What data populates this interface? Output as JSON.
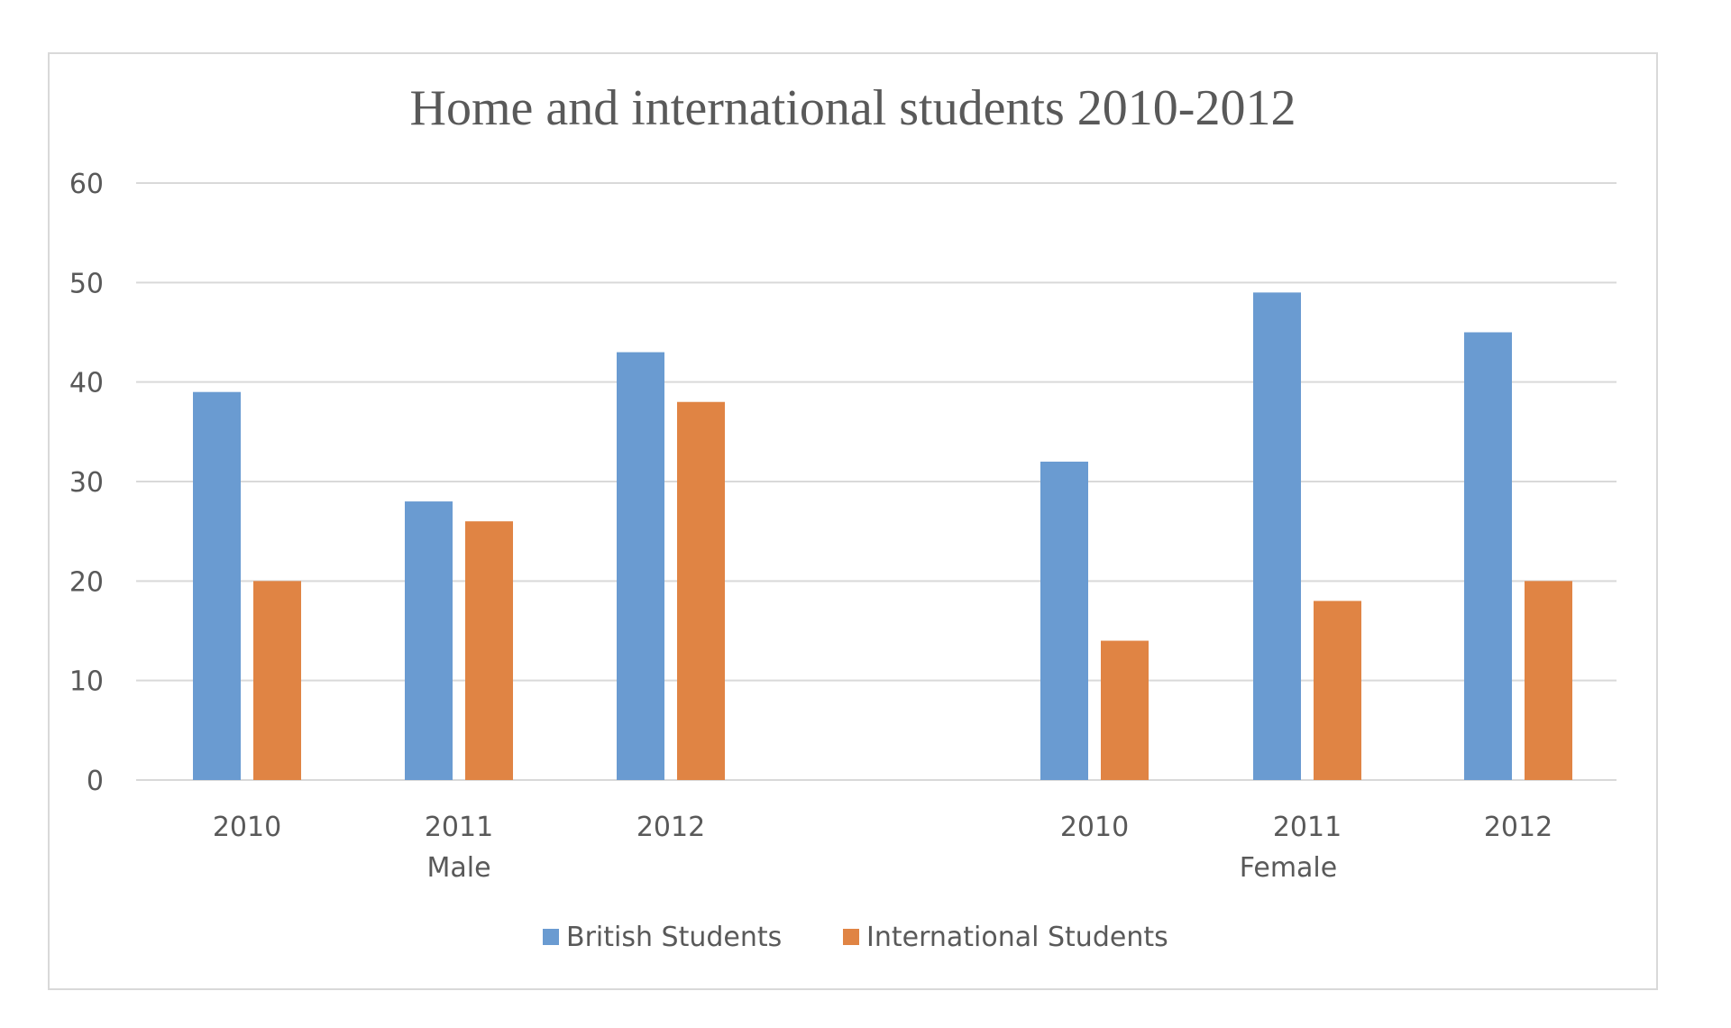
{
  "chart_data": {
    "type": "bar",
    "title": "Home and international students 2010-2012",
    "groups": [
      {
        "label": "Male",
        "categories": [
          "2010",
          "2011",
          "2012"
        ]
      },
      {
        "label": "Female",
        "categories": [
          "2010",
          "2011",
          "2012"
        ]
      }
    ],
    "categories": [
      "2010",
      "2011",
      "2012",
      "2010",
      "2011",
      "2012"
    ],
    "series": [
      {
        "name": "British Students",
        "color": "#6a9bd1",
        "values": [
          39,
          28,
          43,
          32,
          49,
          45
        ]
      },
      {
        "name": "International Students",
        "color": "#e08444",
        "values": [
          20,
          26,
          38,
          14,
          18,
          20
        ]
      }
    ],
    "ylim": [
      0,
      60
    ],
    "yticks": [
      "0",
      "10",
      "20",
      "30",
      "40",
      "50",
      "60"
    ],
    "grid": true,
    "legend_position": "bottom"
  }
}
